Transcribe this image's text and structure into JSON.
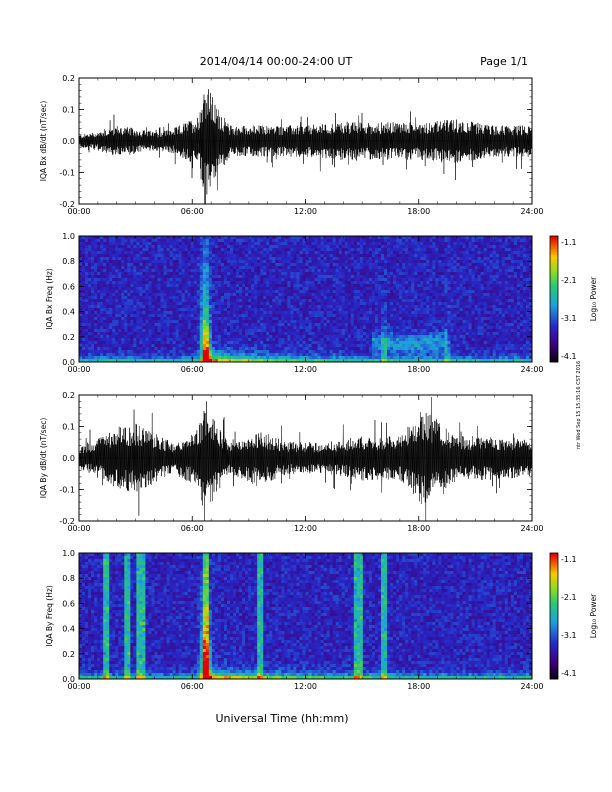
{
  "header": {
    "title": "2014/04/14  00:00-24:00 UT",
    "page": "Page 1/1"
  },
  "x_axis_label": "Universal Time (hh:mm)",
  "time_ticks": [
    "00:00",
    "06:00",
    "12:00",
    "18:00",
    "24:00"
  ],
  "side_stamp": "ntr Wed Sep 15 15:35:16 CST 2016",
  "colorbar": {
    "label": "Log₁₀ Power",
    "ticks": [
      "-1.1",
      "-2.1",
      "-3.1",
      "-4.1"
    ],
    "range": [
      -4.1,
      -1.1
    ]
  },
  "chart_data": [
    {
      "type": "line",
      "id": "bx-dbdt",
      "ylabel": "IQA Bx dB/dt (nT/sec)",
      "xlim": [
        0,
        24
      ],
      "ylim": [
        -0.2,
        0.2
      ],
      "yticks": [
        "0.2",
        "0.1",
        "0.0",
        "-0.1",
        "-0.2"
      ],
      "amplitude_envelope": [
        {
          "t": 0,
          "amp": 0.02
        },
        {
          "t": 1,
          "amp": 0.03
        },
        {
          "t": 2,
          "amp": 0.05
        },
        {
          "t": 3,
          "amp": 0.04
        },
        {
          "t": 4,
          "amp": 0.03
        },
        {
          "t": 5,
          "amp": 0.04
        },
        {
          "t": 6.3,
          "amp": 0.08
        },
        {
          "t": 6.7,
          "amp": 0.2
        },
        {
          "t": 7.2,
          "amp": 0.12
        },
        {
          "t": 8,
          "amp": 0.05
        },
        {
          "t": 10,
          "amp": 0.05
        },
        {
          "t": 12,
          "amp": 0.05
        },
        {
          "t": 14,
          "amp": 0.06
        },
        {
          "t": 16,
          "amp": 0.06
        },
        {
          "t": 18,
          "amp": 0.06
        },
        {
          "t": 20,
          "amp": 0.07
        },
        {
          "t": 22,
          "amp": 0.05
        },
        {
          "t": 24,
          "amp": 0.05
        }
      ]
    },
    {
      "type": "heatmap",
      "id": "bx-freq",
      "ylabel": "IQA Bx Freq (Hz)",
      "xlim": [
        0,
        24
      ],
      "ylim": [
        0,
        1
      ],
      "yticks": [
        "1.0",
        "0.8",
        "0.6",
        "0.4",
        "0.2",
        "0.0"
      ],
      "features": [
        {
          "t": 6.7,
          "note": "broadband burst"
        },
        {
          "t": 16.2,
          "note": "Pc1 band ~0.2 Hz"
        },
        {
          "t": 19.5,
          "note": "enhanced low-frequency power"
        }
      ]
    },
    {
      "type": "line",
      "id": "by-dbdt",
      "ylabel": "IQA By dB/dt (nT/sec)",
      "xlim": [
        0,
        24
      ],
      "ylim": [
        -0.2,
        0.2
      ],
      "yticks": [
        "0.2",
        "0.1",
        "0.0",
        "-0.1",
        "-0.2"
      ],
      "amplitude_envelope": [
        {
          "t": 0,
          "amp": 0.04
        },
        {
          "t": 1,
          "amp": 0.06
        },
        {
          "t": 2,
          "amp": 0.1
        },
        {
          "t": 3,
          "amp": 0.11
        },
        {
          "t": 4,
          "amp": 0.08
        },
        {
          "t": 5,
          "amp": 0.05
        },
        {
          "t": 6.3,
          "amp": 0.09
        },
        {
          "t": 6.7,
          "amp": 0.2
        },
        {
          "t": 7.2,
          "amp": 0.12
        },
        {
          "t": 8,
          "amp": 0.05
        },
        {
          "t": 9.6,
          "amp": 0.09
        },
        {
          "t": 11,
          "amp": 0.05
        },
        {
          "t": 13,
          "amp": 0.05
        },
        {
          "t": 15,
          "amp": 0.07
        },
        {
          "t": 17,
          "amp": 0.07
        },
        {
          "t": 18.2,
          "amp": 0.16
        },
        {
          "t": 20,
          "amp": 0.07
        },
        {
          "t": 22,
          "amp": 0.07
        },
        {
          "t": 24,
          "amp": 0.06
        }
      ]
    },
    {
      "type": "heatmap",
      "id": "by-freq",
      "ylabel": "IQA By Freq (Hz)",
      "xlim": [
        0,
        24
      ],
      "ylim": [
        0,
        1
      ],
      "yticks": [
        "1.0",
        "0.8",
        "0.6",
        "0.4",
        "0.2",
        "0.0"
      ],
      "features": [
        {
          "t": 1.4,
          "note": "broadband stripe"
        },
        {
          "t": 2.5,
          "note": "broadband stripe"
        },
        {
          "t": 3.3,
          "note": "broadband stripe"
        },
        {
          "t": 6.7,
          "note": "broadband burst"
        },
        {
          "t": 9.6,
          "note": "broadband stripe"
        },
        {
          "t": 14.8,
          "note": "broadband stripe"
        },
        {
          "t": 16.2,
          "note": "broadband stripe"
        }
      ]
    }
  ]
}
